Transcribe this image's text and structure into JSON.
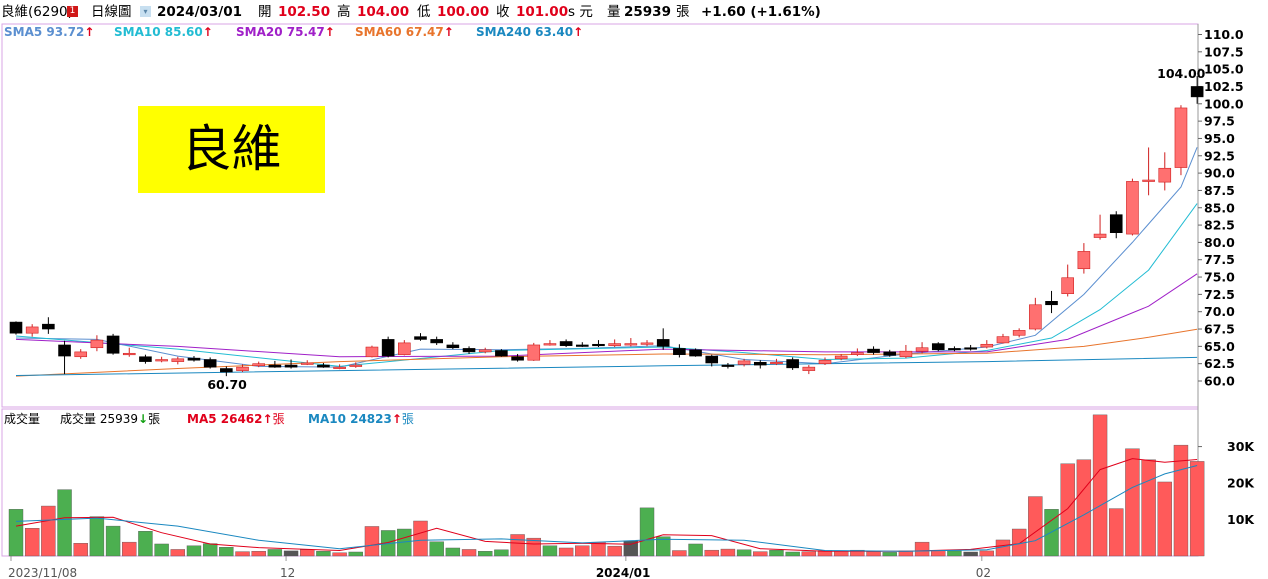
{
  "header": {
    "stock_name": "良維(6290)",
    "badge": "1",
    "chart_type": "日線圖",
    "date": "2024/03/01",
    "open_label": "開",
    "open_value": "102.50",
    "high_label": "高",
    "high_value": "104.00",
    "low_label": "低",
    "low_value": "100.00",
    "close_label": "收",
    "close_value": "101.00",
    "unit_label": "s 元",
    "volume_label": "量",
    "volume_value": "25939",
    "volume_unit": "張",
    "change": "+1.60 (+1.61%)"
  },
  "title_box": {
    "text": "良維",
    "background": "#ffff00"
  },
  "price_legend": [
    {
      "label": "SMA5 93.72",
      "arrow": "↑",
      "color": "#5b8fd0"
    },
    {
      "label": "SMA10 85.60",
      "arrow": "↑",
      "color": "#22bcd3"
    },
    {
      "label": "SMA20 75.47",
      "arrow": "↑",
      "color": "#a020c8"
    },
    {
      "label": "SMA60 67.47",
      "arrow": "↑",
      "color": "#e8742c"
    },
    {
      "label": "SMA240 63.40",
      "arrow": "↑",
      "color": "#1a88c0"
    }
  ],
  "volume_legend": {
    "title": "成交量",
    "vol_label": "成交量 25939",
    "vol_arrow": "↓",
    "vol_unit": "張",
    "ma5_label": "MA5 26462",
    "ma5_arrow": "↑",
    "ma5_unit": "張",
    "ma10_label": "MA10 24823",
    "ma10_arrow": "↑",
    "ma10_unit": "張"
  },
  "annotations": {
    "high_label": "104.00",
    "low_label": "60.70"
  },
  "colors": {
    "up_fill": "#ff7070",
    "up_edge": "#d02020",
    "down_fill": "#000000",
    "vol_up": "#ff5a5a",
    "vol_down_green": "#4caf50",
    "vol_flat": "#555555",
    "grid_border": "#d8a6e6"
  },
  "chart_data": [
    {
      "type": "candlestick",
      "title": "",
      "ylim": [
        57.5,
        111
      ],
      "yticks": [
        "110.0",
        "107.5",
        "105.0",
        "102.5",
        "100.0",
        "97.5",
        "95.0",
        "92.5",
        "90.0",
        "87.5",
        "85.0",
        "82.5",
        "80.0",
        "77.5",
        "75.0",
        "72.5",
        "70.0",
        "67.5",
        "65.0",
        "62.5",
        "60.0"
      ],
      "x_labels": [
        {
          "index": 0,
          "label": "2023/11/08"
        },
        {
          "index": 17,
          "label": "12"
        },
        {
          "index": 38,
          "label": "2024/01"
        },
        {
          "index": 60,
          "label": "02"
        }
      ],
      "candles": [
        [
          68.5,
          66.9,
          68.6,
          66.7
        ],
        [
          66.9,
          67.8,
          68.2,
          66.4
        ],
        [
          68.2,
          67.5,
          69.2,
          66.8
        ],
        [
          65.2,
          63.6,
          65.8,
          61.0
        ],
        [
          63.5,
          64.2,
          64.6,
          63.2
        ],
        [
          64.8,
          65.9,
          66.6,
          64.3
        ],
        [
          66.5,
          64.0,
          66.8,
          63.8
        ],
        [
          64.0,
          64.0,
          64.8,
          63.5
        ],
        [
          63.5,
          62.8,
          63.8,
          62.5
        ],
        [
          63.0,
          63.1,
          63.5,
          62.7
        ],
        [
          62.8,
          63.2,
          63.5,
          62.4
        ],
        [
          63.3,
          63.0,
          63.6,
          62.8
        ],
        [
          63.1,
          62.0,
          63.4,
          61.8
        ],
        [
          61.8,
          61.3,
          62.1,
          60.7
        ],
        [
          61.5,
          62.0,
          62.4,
          61.3
        ],
        [
          62.2,
          62.5,
          62.8,
          62.0
        ],
        [
          62.3,
          62.0,
          62.9,
          61.9
        ],
        [
          62.3,
          62.0,
          63.1,
          61.8
        ],
        [
          62.5,
          62.6,
          63.0,
          62.3
        ],
        [
          62.3,
          62.0,
          62.6,
          61.9
        ],
        [
          62.0,
          62.0,
          62.4,
          61.7
        ],
        [
          62.1,
          62.3,
          62.7,
          61.9
        ],
        [
          63.5,
          64.9,
          65.1,
          63.4
        ],
        [
          66.0,
          63.6,
          66.4,
          63.4
        ],
        [
          63.8,
          65.5,
          65.9,
          63.7
        ],
        [
          66.4,
          66.0,
          66.9,
          65.8
        ],
        [
          66.0,
          65.5,
          66.4,
          65.2
        ],
        [
          65.2,
          64.8,
          65.6,
          64.6
        ],
        [
          64.7,
          64.2,
          65.0,
          63.9
        ],
        [
          64.2,
          64.5,
          64.8,
          64.0
        ],
        [
          64.4,
          63.6,
          64.6,
          63.5
        ],
        [
          63.5,
          63.0,
          63.9,
          62.8
        ],
        [
          63.0,
          65.2,
          65.5,
          62.9
        ],
        [
          65.4,
          65.4,
          65.9,
          65.1
        ],
        [
          65.7,
          65.1,
          66.0,
          64.9
        ],
        [
          65.2,
          65.1,
          65.6,
          64.9
        ],
        [
          65.3,
          65.2,
          65.9,
          64.9
        ],
        [
          65.1,
          65.4,
          66.0,
          64.9
        ],
        [
          65.3,
          65.4,
          66.2,
          65.0
        ],
        [
          65.3,
          65.5,
          65.9,
          65.0
        ],
        [
          66.0,
          65.0,
          67.6,
          64.5
        ],
        [
          64.7,
          63.8,
          65.3,
          63.4
        ],
        [
          64.5,
          63.6,
          64.7,
          63.5
        ],
        [
          63.6,
          62.6,
          63.8,
          62.1
        ],
        [
          62.3,
          62.1,
          62.6,
          61.8
        ],
        [
          62.4,
          62.9,
          63.2,
          62.1
        ],
        [
          62.7,
          62.3,
          63.0,
          61.8
        ],
        [
          62.6,
          62.7,
          63.2,
          62.3
        ],
        [
          63.1,
          61.9,
          63.4,
          61.6
        ],
        [
          61.5,
          62.0,
          62.3,
          61.0
        ],
        [
          62.5,
          63.0,
          63.4,
          62.3
        ],
        [
          63.2,
          63.6,
          63.9,
          63.0
        ],
        [
          63.8,
          64.1,
          64.7,
          63.6
        ],
        [
          64.6,
          64.1,
          65.0,
          63.8
        ],
        [
          64.2,
          63.7,
          64.5,
          63.5
        ],
        [
          63.5,
          64.3,
          65.2,
          63.3
        ],
        [
          64.3,
          64.8,
          65.6,
          64.0
        ],
        [
          65.4,
          64.5,
          65.6,
          64.3
        ],
        [
          64.7,
          64.6,
          65.0,
          64.3
        ],
        [
          64.8,
          64.6,
          65.2,
          64.4
        ],
        [
          64.9,
          65.3,
          65.9,
          64.7
        ],
        [
          65.5,
          66.4,
          66.8,
          65.4
        ],
        [
          66.6,
          67.3,
          67.6,
          66.3
        ],
        [
          67.5,
          71.0,
          72.0,
          67.3
        ],
        [
          71.5,
          71.0,
          73.0,
          69.8
        ],
        [
          72.6,
          74.9,
          76.8,
          72.2
        ],
        [
          76.2,
          78.7,
          79.9,
          75.5
        ],
        [
          80.7,
          81.2,
          84.0,
          80.4
        ],
        [
          84.0,
          81.4,
          84.5,
          80.6
        ],
        [
          81.2,
          88.8,
          89.2,
          81.0
        ],
        [
          89.0,
          89.0,
          93.7,
          86.8
        ],
        [
          88.7,
          90.7,
          93.0,
          87.5
        ],
        [
          90.8,
          99.4,
          99.8,
          89.7
        ],
        [
          102.5,
          101.0,
          104.0,
          100.0
        ]
      ],
      "sma_series": [
        {
          "name": "SMA5",
          "values": [
            {
              "i": 0,
              "v": 66.2
            },
            {
              "i": 5,
              "v": 66.0
            },
            {
              "i": 10,
              "v": 63.6
            },
            {
              "i": 15,
              "v": 62.1
            },
            {
              "i": 20,
              "v": 62.0
            },
            {
              "i": 25,
              "v": 64.6
            },
            {
              "i": 30,
              "v": 64.5
            },
            {
              "i": 35,
              "v": 64.7
            },
            {
              "i": 40,
              "v": 65.1
            },
            {
              "i": 45,
              "v": 63.1
            },
            {
              "i": 50,
              "v": 62.5
            },
            {
              "i": 55,
              "v": 63.9
            },
            {
              "i": 60,
              "v": 64.9
            },
            {
              "i": 63,
              "v": 66.6
            },
            {
              "i": 66,
              "v": 72.5
            },
            {
              "i": 69,
              "v": 80.0
            },
            {
              "i": 72,
              "v": 88.0
            },
            {
              "i": 73,
              "v": 93.72
            }
          ]
        },
        {
          "name": "SMA10",
          "values": [
            {
              "i": 0,
              "v": 66.5
            },
            {
              "i": 10,
              "v": 64.6
            },
            {
              "i": 20,
              "v": 62.1
            },
            {
              "i": 30,
              "v": 64.4
            },
            {
              "i": 40,
              "v": 64.9
            },
            {
              "i": 45,
              "v": 64.1
            },
            {
              "i": 50,
              "v": 63.1
            },
            {
              "i": 55,
              "v": 63.3
            },
            {
              "i": 60,
              "v": 64.4
            },
            {
              "i": 64,
              "v": 66.2
            },
            {
              "i": 67,
              "v": 70.3
            },
            {
              "i": 70,
              "v": 76.0
            },
            {
              "i": 73,
              "v": 85.6
            }
          ]
        },
        {
          "name": "SMA20",
          "values": [
            {
              "i": 0,
              "v": 66.0
            },
            {
              "i": 10,
              "v": 65.0
            },
            {
              "i": 20,
              "v": 63.5
            },
            {
              "i": 30,
              "v": 63.6
            },
            {
              "i": 40,
              "v": 64.6
            },
            {
              "i": 50,
              "v": 64.2
            },
            {
              "i": 60,
              "v": 64.2
            },
            {
              "i": 65,
              "v": 66.0
            },
            {
              "i": 70,
              "v": 70.8
            },
            {
              "i": 73,
              "v": 75.47
            }
          ]
        },
        {
          "name": "SMA60",
          "values": [
            {
              "i": 0,
              "v": 60.7
            },
            {
              "i": 10,
              "v": 61.8
            },
            {
              "i": 20,
              "v": 62.8
            },
            {
              "i": 30,
              "v": 63.5
            },
            {
              "i": 40,
              "v": 63.9
            },
            {
              "i": 50,
              "v": 63.8
            },
            {
              "i": 60,
              "v": 64.0
            },
            {
              "i": 66,
              "v": 65.0
            },
            {
              "i": 70,
              "v": 66.3
            },
            {
              "i": 73,
              "v": 67.47
            }
          ]
        },
        {
          "name": "SMA240",
          "values": [
            {
              "i": 0,
              "v": 60.8
            },
            {
              "i": 20,
              "v": 61.5
            },
            {
              "i": 40,
              "v": 62.2
            },
            {
              "i": 60,
              "v": 62.8
            },
            {
              "i": 73,
              "v": 63.4
            }
          ]
        }
      ]
    },
    {
      "type": "bar",
      "title": "",
      "ylim": [
        0,
        39000
      ],
      "yticks": [
        "30K",
        "20K",
        "10K"
      ],
      "volume": [
        12800,
        7600,
        13700,
        18200,
        3500,
        10800,
        8200,
        3800,
        6800,
        3300,
        1800,
        2800,
        3400,
        2400,
        1200,
        1300,
        1800,
        1400,
        1700,
        1300,
        900,
        1100,
        8100,
        7000,
        7400,
        9600,
        3900,
        2200,
        1800,
        1300,
        1700,
        5900,
        4900,
        2800,
        2200,
        2800,
        3800,
        2700,
        4200,
        13200,
        5300,
        1500,
        3300,
        1600,
        1900,
        1700,
        1200,
        1600,
        1100,
        1200,
        1500,
        1400,
        1600,
        1200,
        1000,
        1400,
        3800,
        1500,
        1400,
        1100,
        1400,
        4400,
        7400,
        16300,
        12800,
        25300,
        26400,
        38700,
        13000,
        29400,
        26400,
        20300,
        30400,
        25939
      ],
      "volume_color": [
        "d",
        "u",
        "u",
        "d",
        "u",
        "d",
        "d",
        "u",
        "d",
        "d",
        "u",
        "d",
        "d",
        "d",
        "u",
        "u",
        "d",
        "f",
        "u",
        "d",
        "u",
        "d",
        "u",
        "d",
        "d",
        "u",
        "d",
        "d",
        "u",
        "d",
        "d",
        "u",
        "u",
        "d",
        "u",
        "u",
        "u",
        "u",
        "f",
        "d",
        "d",
        "u",
        "d",
        "u",
        "u",
        "d",
        "u",
        "d",
        "d",
        "u",
        "u",
        "u",
        "u",
        "u",
        "d",
        "u",
        "u",
        "u",
        "d",
        "f",
        "u",
        "u",
        "u",
        "u",
        "d",
        "u",
        "u",
        "u",
        "u",
        "u",
        "u",
        "u",
        "u",
        "u"
      ],
      "ma5": [
        {
          "i": 0,
          "v": 8200
        },
        {
          "i": 3,
          "v": 10500
        },
        {
          "i": 6,
          "v": 10600
        },
        {
          "i": 9,
          "v": 6400
        },
        {
          "i": 12,
          "v": 3300
        },
        {
          "i": 15,
          "v": 2300
        },
        {
          "i": 20,
          "v": 1500
        },
        {
          "i": 23,
          "v": 3700
        },
        {
          "i": 26,
          "v": 7600
        },
        {
          "i": 29,
          "v": 4000
        },
        {
          "i": 32,
          "v": 3300
        },
        {
          "i": 35,
          "v": 3500
        },
        {
          "i": 38,
          "v": 3200
        },
        {
          "i": 40,
          "v": 5800
        },
        {
          "i": 43,
          "v": 5600
        },
        {
          "i": 46,
          "v": 2000
        },
        {
          "i": 50,
          "v": 1300
        },
        {
          "i": 55,
          "v": 1300
        },
        {
          "i": 59,
          "v": 1800
        },
        {
          "i": 62,
          "v": 3400
        },
        {
          "i": 65,
          "v": 13000
        },
        {
          "i": 67,
          "v": 23700
        },
        {
          "i": 69,
          "v": 26700
        },
        {
          "i": 71,
          "v": 25700
        },
        {
          "i": 73,
          "v": 26462
        }
      ],
      "ma10": [
        {
          "i": 0,
          "v": 9500
        },
        {
          "i": 5,
          "v": 10400
        },
        {
          "i": 10,
          "v": 8200
        },
        {
          "i": 15,
          "v": 4300
        },
        {
          "i": 20,
          "v": 2000
        },
        {
          "i": 25,
          "v": 4300
        },
        {
          "i": 30,
          "v": 4700
        },
        {
          "i": 35,
          "v": 3600
        },
        {
          "i": 40,
          "v": 4600
        },
        {
          "i": 45,
          "v": 4300
        },
        {
          "i": 50,
          "v": 1500
        },
        {
          "i": 55,
          "v": 1300
        },
        {
          "i": 60,
          "v": 1700
        },
        {
          "i": 63,
          "v": 4200
        },
        {
          "i": 66,
          "v": 11300
        },
        {
          "i": 69,
          "v": 18800
        },
        {
          "i": 71,
          "v": 22500
        },
        {
          "i": 73,
          "v": 24823
        }
      ]
    }
  ]
}
